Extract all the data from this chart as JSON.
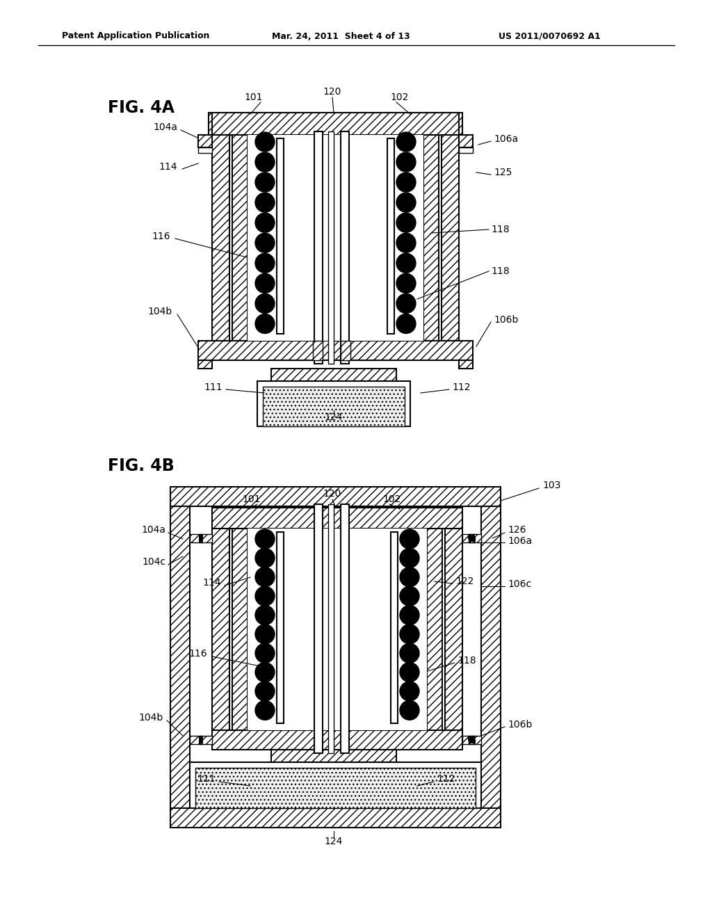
{
  "bg_color": "#ffffff",
  "header_left": "Patent Application Publication",
  "header_mid": "Mar. 24, 2011  Sheet 4 of 13",
  "header_right": "US 2011/0070692 A1",
  "fig4a_label": "FIG. 4A",
  "fig4b_label": "FIG. 4B"
}
